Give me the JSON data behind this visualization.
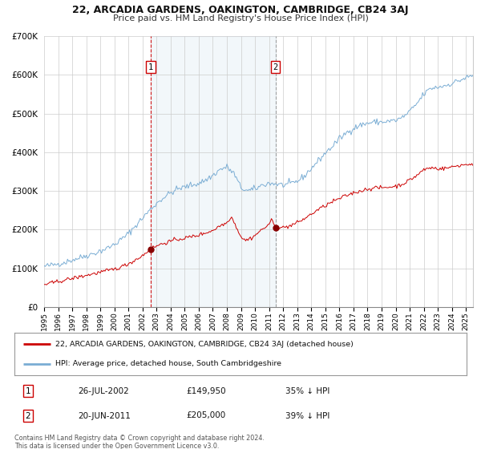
{
  "title": "22, ARCADIA GARDENS, OAKINGTON, CAMBRIDGE, CB24 3AJ",
  "subtitle": "Price paid vs. HM Land Registry's House Price Index (HPI)",
  "legend_line1": "22, ARCADIA GARDENS, OAKINGTON, CAMBRIDGE, CB24 3AJ (detached house)",
  "legend_line2": "HPI: Average price, detached house, South Cambridgeshire",
  "marker1_date": "26-JUL-2002",
  "marker1_price": 149950,
  "marker1_label": "35% ↓ HPI",
  "marker2_date": "20-JUN-2011",
  "marker2_price": 205000,
  "marker2_label": "39% ↓ HPI",
  "footer": "Contains HM Land Registry data © Crown copyright and database right 2024.\nThis data is licensed under the Open Government Licence v3.0.",
  "red_color": "#cc0000",
  "blue_color": "#7aadd4",
  "shading_color": "#ddeeff",
  "background_color": "#ffffff",
  "grid_color": "#cccccc",
  "ylim": [
    0,
    700000
  ],
  "yticks": [
    0,
    100000,
    200000,
    300000,
    400000,
    500000,
    600000,
    700000
  ],
  "xlim_start": 1995.0,
  "xlim_end": 2025.5,
  "marker1_x": 2002.583,
  "marker2_x": 2011.458,
  "hpi_anchors": [
    [
      1995.0,
      105000
    ],
    [
      1995.5,
      108000
    ],
    [
      1996.0,
      112000
    ],
    [
      1996.5,
      116000
    ],
    [
      1997.0,
      122000
    ],
    [
      1997.5,
      127000
    ],
    [
      1998.0,
      133000
    ],
    [
      1998.5,
      138000
    ],
    [
      1999.0,
      145000
    ],
    [
      1999.5,
      152000
    ],
    [
      2000.0,
      162000
    ],
    [
      2000.5,
      175000
    ],
    [
      2001.0,
      190000
    ],
    [
      2001.5,
      210000
    ],
    [
      2002.0,
      230000
    ],
    [
      2002.5,
      250000
    ],
    [
      2003.0,
      268000
    ],
    [
      2003.5,
      283000
    ],
    [
      2004.0,
      295000
    ],
    [
      2004.5,
      305000
    ],
    [
      2005.0,
      310000
    ],
    [
      2005.5,
      315000
    ],
    [
      2006.0,
      320000
    ],
    [
      2006.5,
      328000
    ],
    [
      2007.0,
      340000
    ],
    [
      2007.5,
      355000
    ],
    [
      2008.0,
      362000
    ],
    [
      2008.5,
      345000
    ],
    [
      2009.0,
      308000
    ],
    [
      2009.5,
      300000
    ],
    [
      2010.0,
      305000
    ],
    [
      2010.5,
      315000
    ],
    [
      2011.0,
      320000
    ],
    [
      2011.5,
      318000
    ],
    [
      2012.0,
      315000
    ],
    [
      2012.5,
      318000
    ],
    [
      2013.0,
      325000
    ],
    [
      2013.5,
      338000
    ],
    [
      2014.0,
      358000
    ],
    [
      2014.5,
      378000
    ],
    [
      2015.0,
      398000
    ],
    [
      2015.5,
      415000
    ],
    [
      2016.0,
      435000
    ],
    [
      2016.5,
      450000
    ],
    [
      2017.0,
      462000
    ],
    [
      2017.5,
      470000
    ],
    [
      2018.0,
      475000
    ],
    [
      2018.5,
      478000
    ],
    [
      2019.0,
      478000
    ],
    [
      2019.5,
      480000
    ],
    [
      2020.0,
      482000
    ],
    [
      2020.5,
      490000
    ],
    [
      2021.0,
      505000
    ],
    [
      2021.5,
      525000
    ],
    [
      2022.0,
      550000
    ],
    [
      2022.5,
      565000
    ],
    [
      2023.0,
      568000
    ],
    [
      2023.5,
      572000
    ],
    [
      2024.0,
      578000
    ],
    [
      2024.5,
      585000
    ],
    [
      2025.0,
      592000
    ],
    [
      2025.5,
      598000
    ]
  ],
  "prop_anchors": [
    [
      1995.0,
      58000
    ],
    [
      1995.5,
      62000
    ],
    [
      1996.0,
      66000
    ],
    [
      1996.5,
      70000
    ],
    [
      1997.0,
      74000
    ],
    [
      1997.5,
      78000
    ],
    [
      1998.0,
      82000
    ],
    [
      1998.5,
      86000
    ],
    [
      1999.0,
      90000
    ],
    [
      1999.5,
      94000
    ],
    [
      2000.0,
      98000
    ],
    [
      2000.5,
      104000
    ],
    [
      2001.0,
      112000
    ],
    [
      2001.5,
      122000
    ],
    [
      2002.0,
      133000
    ],
    [
      2002.583,
      149950
    ],
    [
      2003.0,
      158000
    ],
    [
      2003.5,
      165000
    ],
    [
      2004.0,
      170000
    ],
    [
      2004.5,
      175000
    ],
    [
      2005.0,
      178000
    ],
    [
      2005.5,
      182000
    ],
    [
      2006.0,
      186000
    ],
    [
      2006.5,
      192000
    ],
    [
      2007.0,
      198000
    ],
    [
      2007.5,
      210000
    ],
    [
      2008.0,
      218000
    ],
    [
      2008.3,
      235000
    ],
    [
      2008.7,
      205000
    ],
    [
      2009.0,
      182000
    ],
    [
      2009.3,
      172000
    ],
    [
      2009.7,
      178000
    ],
    [
      2010.0,
      185000
    ],
    [
      2010.3,
      195000
    ],
    [
      2010.7,
      205000
    ],
    [
      2011.0,
      215000
    ],
    [
      2011.2,
      225000
    ],
    [
      2011.458,
      205000
    ],
    [
      2011.7,
      208000
    ],
    [
      2012.0,
      205000
    ],
    [
      2012.5,
      210000
    ],
    [
      2013.0,
      218000
    ],
    [
      2013.5,
      228000
    ],
    [
      2014.0,
      240000
    ],
    [
      2014.5,
      252000
    ],
    [
      2015.0,
      262000
    ],
    [
      2015.5,
      272000
    ],
    [
      2016.0,
      280000
    ],
    [
      2016.5,
      288000
    ],
    [
      2017.0,
      295000
    ],
    [
      2017.5,
      300000
    ],
    [
      2018.0,
      305000
    ],
    [
      2018.5,
      308000
    ],
    [
      2019.0,
      308000
    ],
    [
      2019.5,
      310000
    ],
    [
      2020.0,
      312000
    ],
    [
      2020.5,
      318000
    ],
    [
      2021.0,
      328000
    ],
    [
      2021.5,
      340000
    ],
    [
      2022.0,
      355000
    ],
    [
      2022.5,
      360000
    ],
    [
      2023.0,
      358000
    ],
    [
      2023.5,
      358000
    ],
    [
      2024.0,
      362000
    ],
    [
      2024.5,
      366000
    ],
    [
      2025.0,
      368000
    ],
    [
      2025.5,
      370000
    ]
  ]
}
